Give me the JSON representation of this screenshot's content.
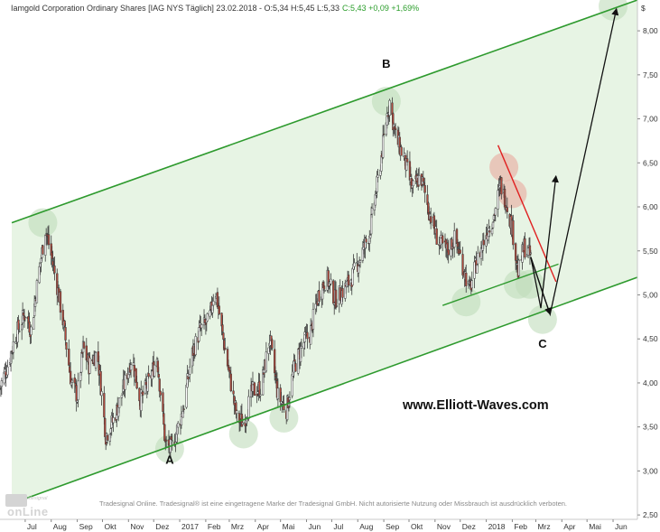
{
  "header": {
    "instrument": "Iamgold Corporation Ordinary Shares [IAG NYS Täglich] 23.02.2018 - O:5,34 H:5,45 L:5,33",
    "change": "C:5,43 +0,09 +1,69%"
  },
  "currency_label": "$",
  "watermark_url": "www.Elliott-Waves.com",
  "disclaimer": "Tradesignal Online. Tradesignal® ist eine eingetragene Marke der Tradesignal GmbH. Nicht autorisierte Nutzung oder Missbrauch ist ausdrücklich verboten.",
  "logo": {
    "small": "Tradesignal",
    "big": "onLine"
  },
  "colors": {
    "channel_line": "#2e9a2e",
    "channel_fill": "#e3f2df",
    "candle_up": "#ffffff",
    "candle_down": "#b24a3d",
    "resistance_line": "#e02020",
    "arrow": "#111111",
    "highlight_green": "#bfdcbb",
    "highlight_red": "#e8b3a8"
  },
  "chart_data": {
    "type": "candlestick",
    "title": "Iamgold Corporation Ordinary Shares [IAG NYS Täglich]",
    "x_tick_labels": [
      "Jul",
      "Aug",
      "Sep",
      "Okt",
      "Nov",
      "Dez",
      "2017",
      "Feb",
      "Mrz",
      "Apr",
      "Mai",
      "Jun",
      "Jul",
      "Aug",
      "Sep",
      "Okt",
      "Nov",
      "Dez",
      "2018",
      "Feb",
      "Mrz",
      "Apr",
      "Mai",
      "Jun"
    ],
    "x_range": [
      "2016-06-01",
      "2018-06-30"
    ],
    "y_tick_labels": [
      "2,50",
      "3,00",
      "3,50",
      "4,00",
      "4,50",
      "5,00",
      "5,50",
      "6,00",
      "6,50",
      "7,00",
      "7,50",
      "8,00"
    ],
    "ylim": [
      2.45,
      8.35
    ],
    "close_path": [
      [
        "2016-06-01",
        3.95
      ],
      [
        "2016-06-10",
        4.2
      ],
      [
        "2016-06-20",
        4.55
      ],
      [
        "2016-07-01",
        4.8
      ],
      [
        "2016-07-08",
        4.6
      ],
      [
        "2016-07-15",
        5.1
      ],
      [
        "2016-07-25",
        5.75
      ],
      [
        "2016-08-01",
        5.45
      ],
      [
        "2016-08-08",
        5.1
      ],
      [
        "2016-08-15",
        4.7
      ],
      [
        "2016-08-25",
        4.0
      ],
      [
        "2016-09-01",
        3.85
      ],
      [
        "2016-09-08",
        4.4
      ],
      [
        "2016-09-15",
        4.2
      ],
      [
        "2016-09-25",
        4.35
      ],
      [
        "2016-10-05",
        3.4
      ],
      [
        "2016-10-15",
        3.6
      ],
      [
        "2016-10-25",
        3.9
      ],
      [
        "2016-11-05",
        4.3
      ],
      [
        "2016-11-15",
        3.8
      ],
      [
        "2016-11-25",
        4.0
      ],
      [
        "2016-12-05",
        4.3
      ],
      [
        "2016-12-15",
        3.3
      ],
      [
        "2016-12-22",
        3.25
      ],
      [
        "2017-01-05",
        3.7
      ],
      [
        "2017-01-15",
        4.3
      ],
      [
        "2017-01-25",
        4.6
      ],
      [
        "2017-02-05",
        4.7
      ],
      [
        "2017-02-12",
        5.1
      ],
      [
        "2017-02-20",
        4.6
      ],
      [
        "2017-03-01",
        4.1
      ],
      [
        "2017-03-10",
        3.6
      ],
      [
        "2017-03-18",
        3.55
      ],
      [
        "2017-03-28",
        3.9
      ],
      [
        "2017-04-08",
        3.95
      ],
      [
        "2017-04-18",
        4.5
      ],
      [
        "2017-04-28",
        3.85
      ],
      [
        "2017-05-08",
        3.7
      ],
      [
        "2017-05-18",
        4.2
      ],
      [
        "2017-05-28",
        4.45
      ],
      [
        "2017-06-05",
        4.55
      ],
      [
        "2017-06-15",
        5.0
      ],
      [
        "2017-06-25",
        5.2
      ],
      [
        "2017-07-05",
        4.95
      ],
      [
        "2017-07-15",
        5.05
      ],
      [
        "2017-07-25",
        5.2
      ],
      [
        "2017-08-05",
        5.45
      ],
      [
        "2017-08-15",
        5.7
      ],
      [
        "2017-08-25",
        6.3
      ],
      [
        "2017-09-05",
        7.05
      ],
      [
        "2017-09-08",
        7.2
      ],
      [
        "2017-09-15",
        6.8
      ],
      [
        "2017-09-25",
        6.55
      ],
      [
        "2017-10-05",
        6.2
      ],
      [
        "2017-10-15",
        6.35
      ],
      [
        "2017-10-25",
        5.95
      ],
      [
        "2017-11-05",
        5.6
      ],
      [
        "2017-11-15",
        5.5
      ],
      [
        "2017-11-25",
        5.65
      ],
      [
        "2017-12-05",
        5.3
      ],
      [
        "2017-12-12",
        5.05
      ],
      [
        "2017-12-20",
        5.35
      ],
      [
        "2018-01-01",
        5.7
      ],
      [
        "2018-01-10",
        5.9
      ],
      [
        "2018-01-18",
        6.25
      ],
      [
        "2018-01-25",
        6.05
      ],
      [
        "2018-02-01",
        5.75
      ],
      [
        "2018-02-08",
        5.25
      ],
      [
        "2018-02-15",
        5.55
      ],
      [
        "2018-02-23",
        5.43
      ]
    ],
    "annotations": {
      "wave_labels": [
        {
          "label": "A",
          "date": "2016-12-20",
          "price": 3.08
        },
        {
          "label": "B",
          "date": "2017-09-04",
          "price": 7.58
        },
        {
          "label": "C",
          "date": "2018-03-09",
          "price": 4.4
        }
      ],
      "channel_upper": [
        [
          "2016-06-15",
          5.82
        ],
        [
          "2018-06-30",
          8.35
        ]
      ],
      "channel_lower": [
        [
          "2016-06-15",
          2.63
        ],
        [
          "2018-06-30",
          5.2
        ]
      ],
      "channel_inner": [
        [
          "2017-11-10",
          4.88
        ],
        [
          "2018-03-28",
          5.35
        ]
      ],
      "resistance": [
        [
          "2018-01-15",
          6.7
        ],
        [
          "2018-03-25",
          5.15
        ]
      ],
      "projection_paths": [
        [
          [
            "2018-02-23",
            5.43
          ],
          [
            "2018-03-07",
            4.85
          ],
          [
            "2018-03-25",
            6.35
          ]
        ],
        [
          [
            "2018-02-23",
            5.43
          ],
          [
            "2018-03-10",
            5.0
          ],
          [
            "2018-03-18",
            4.78
          ],
          [
            "2018-06-05",
            8.25
          ]
        ]
      ],
      "highlights_green": [
        [
          "2016-07-22",
          5.82
        ],
        [
          "2016-12-20",
          3.25
        ],
        [
          "2017-03-18",
          3.42
        ],
        [
          "2017-05-05",
          3.6
        ],
        [
          "2017-09-04",
          7.2
        ],
        [
          "2017-12-08",
          4.92
        ],
        [
          "2018-02-08",
          5.12
        ],
        [
          "2018-02-22",
          5.12
        ],
        [
          "2018-03-09",
          4.72
        ],
        [
          "2018-06-01",
          8.28
        ]
      ],
      "highlights_red": [
        [
          "2018-01-22",
          6.45
        ],
        [
          "2018-02-01",
          6.15
        ]
      ]
    }
  }
}
